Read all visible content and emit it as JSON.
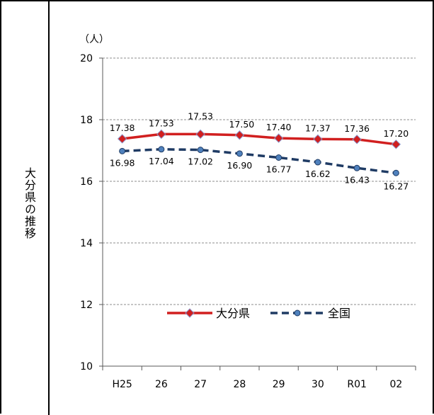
{
  "side_label": "大分県の推移",
  "chart_data": {
    "type": "line",
    "categories": [
      "H25",
      "26",
      "27",
      "28",
      "29",
      "30",
      "R01",
      "02"
    ],
    "series": [
      {
        "name": "大分県",
        "values": [
          17.38,
          17.53,
          17.53,
          17.5,
          17.4,
          17.37,
          17.36,
          17.2
        ],
        "labels": [
          "17.38",
          "17.53",
          "17.53",
          "17.50",
          "17.40",
          "17.37",
          "17.36",
          "17.20"
        ],
        "color": "#d11f1f",
        "marker": "diamond",
        "dashed": false
      },
      {
        "name": "全国",
        "values": [
          16.98,
          17.04,
          17.02,
          16.9,
          16.77,
          16.62,
          16.43,
          16.27
        ],
        "labels": [
          "16.98",
          "17.04",
          "17.02",
          "16.90",
          "16.77",
          "16.62",
          "16.43",
          "16.27"
        ],
        "color": "#1f3b64",
        "marker": "circle",
        "dashed": true
      }
    ],
    "y_unit": "（人）",
    "ylim": [
      10,
      20
    ],
    "y_ticks": [
      "10",
      "12",
      "14",
      "16",
      "18",
      "20"
    ],
    "grid": true,
    "legend_position": "bottom-center"
  }
}
